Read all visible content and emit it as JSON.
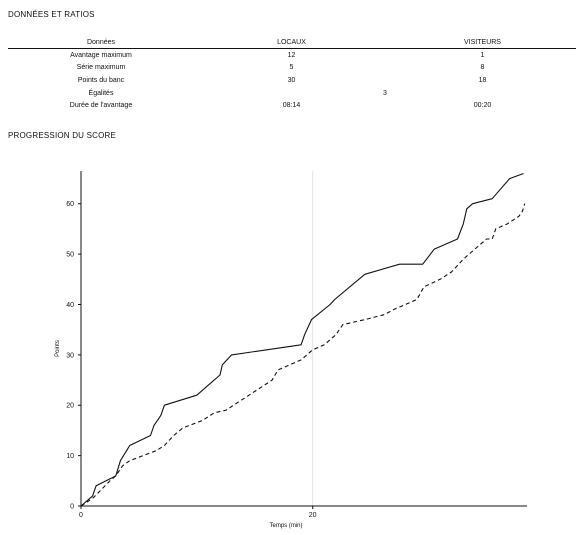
{
  "stats": {
    "title": "DONNÉES ET RATIOS",
    "headers": [
      "Données",
      "LOCAUX",
      "VISITEURS"
    ],
    "rows": [
      {
        "label": "Avantage maximum",
        "home": "12",
        "away": "1"
      },
      {
        "label": "Série maximum",
        "home": "5",
        "away": "8"
      },
      {
        "label": "Points du banc",
        "home": "30",
        "away": "18"
      },
      {
        "label": "Égalités",
        "shared": "3"
      },
      {
        "label": "Durée de l'avantage",
        "home": "08:14",
        "away": "00:20"
      }
    ]
  },
  "progress": {
    "title": "PROGRESSION DU SCORE"
  },
  "chart_data": {
    "type": "line",
    "title": "PROGRESSION DU SCORE",
    "xlabel": "Temps (min)",
    "ylabel": "Points",
    "xlim": [
      0,
      38.5
    ],
    "ylim": [
      0,
      66.5
    ],
    "xticks": [
      0,
      20
    ],
    "yticks": [
      0,
      10,
      20,
      30,
      40,
      50,
      60
    ],
    "grid": "vertical-at-ticks",
    "series": [
      {
        "style": "solid",
        "points": [
          [
            0,
            0
          ],
          [
            1,
            2
          ],
          [
            1.3,
            4
          ],
          [
            2.6,
            5.5
          ],
          [
            3,
            6
          ],
          [
            3.4,
            9
          ],
          [
            4.2,
            12
          ],
          [
            6,
            14
          ],
          [
            6.3,
            16
          ],
          [
            6.9,
            18
          ],
          [
            7.2,
            20
          ],
          [
            10,
            22
          ],
          [
            11,
            24
          ],
          [
            12,
            26
          ],
          [
            12.2,
            28
          ],
          [
            13,
            30
          ],
          [
            19,
            32
          ],
          [
            19.3,
            34
          ],
          [
            19.9,
            37
          ],
          [
            21.5,
            40
          ],
          [
            21.9,
            41
          ],
          [
            24.5,
            46
          ],
          [
            27.5,
            48
          ],
          [
            29.5,
            48
          ],
          [
            30.5,
            51
          ],
          [
            32.5,
            53
          ],
          [
            33,
            56
          ],
          [
            33.3,
            59
          ],
          [
            33.8,
            60
          ],
          [
            35.5,
            61
          ],
          [
            37,
            65
          ],
          [
            38.2,
            66
          ]
        ]
      },
      {
        "style": "dashed",
        "points": [
          [
            0,
            0
          ],
          [
            1,
            1.5
          ],
          [
            2.5,
            5
          ],
          [
            3,
            6
          ],
          [
            3.6,
            8
          ],
          [
            4.2,
            9
          ],
          [
            6.5,
            11
          ],
          [
            7.2,
            12
          ],
          [
            8,
            14
          ],
          [
            8.8,
            15.5
          ],
          [
            10.5,
            17
          ],
          [
            11.5,
            18.5
          ],
          [
            12.5,
            19
          ],
          [
            13.5,
            20.5
          ],
          [
            14.5,
            22
          ],
          [
            16.5,
            25
          ],
          [
            17,
            27
          ],
          [
            18,
            28
          ],
          [
            19,
            29
          ],
          [
            20,
            31
          ],
          [
            21,
            32
          ],
          [
            22,
            34
          ],
          [
            22.6,
            36
          ],
          [
            24.5,
            37
          ],
          [
            26.2,
            38
          ],
          [
            27,
            39
          ],
          [
            28,
            40
          ],
          [
            29,
            41
          ],
          [
            29.6,
            43.5
          ],
          [
            31,
            45
          ],
          [
            32,
            46.5
          ],
          [
            33,
            49
          ],
          [
            34,
            51
          ],
          [
            35,
            53
          ],
          [
            35.5,
            53
          ],
          [
            35.8,
            55
          ],
          [
            36.8,
            56
          ],
          [
            37.8,
            57.5
          ],
          [
            38.1,
            58.5
          ],
          [
            38.3,
            60
          ]
        ]
      }
    ]
  }
}
